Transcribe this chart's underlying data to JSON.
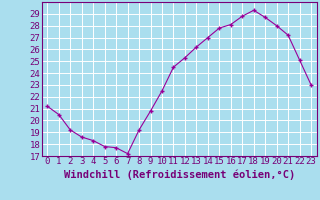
{
  "x": [
    0,
    1,
    2,
    3,
    4,
    5,
    6,
    7,
    8,
    9,
    10,
    11,
    12,
    13,
    14,
    15,
    16,
    17,
    18,
    19,
    20,
    21,
    22,
    23
  ],
  "y": [
    21.2,
    20.5,
    19.2,
    18.6,
    18.3,
    17.8,
    17.7,
    17.2,
    19.2,
    20.8,
    22.5,
    24.5,
    25.3,
    26.2,
    27.0,
    27.8,
    28.1,
    28.8,
    29.3,
    28.7,
    28.0,
    27.2,
    25.1,
    23.0
  ],
  "line_color": "#990099",
  "marker": "+",
  "bg_color": "#aadeee",
  "grid_color": "#ffffff",
  "xlabel": "Windchill (Refroidissement éolien,°C)",
  "ylim": [
    17,
    30
  ],
  "xlim": [
    -0.5,
    23.5
  ],
  "yticks": [
    17,
    18,
    19,
    20,
    21,
    22,
    23,
    24,
    25,
    26,
    27,
    28,
    29
  ],
  "xticks": [
    0,
    1,
    2,
    3,
    4,
    5,
    6,
    7,
    8,
    9,
    10,
    11,
    12,
    13,
    14,
    15,
    16,
    17,
    18,
    19,
    20,
    21,
    22,
    23
  ],
  "text_color": "#770077",
  "font_size": 6.5,
  "label_font_size": 7.5
}
